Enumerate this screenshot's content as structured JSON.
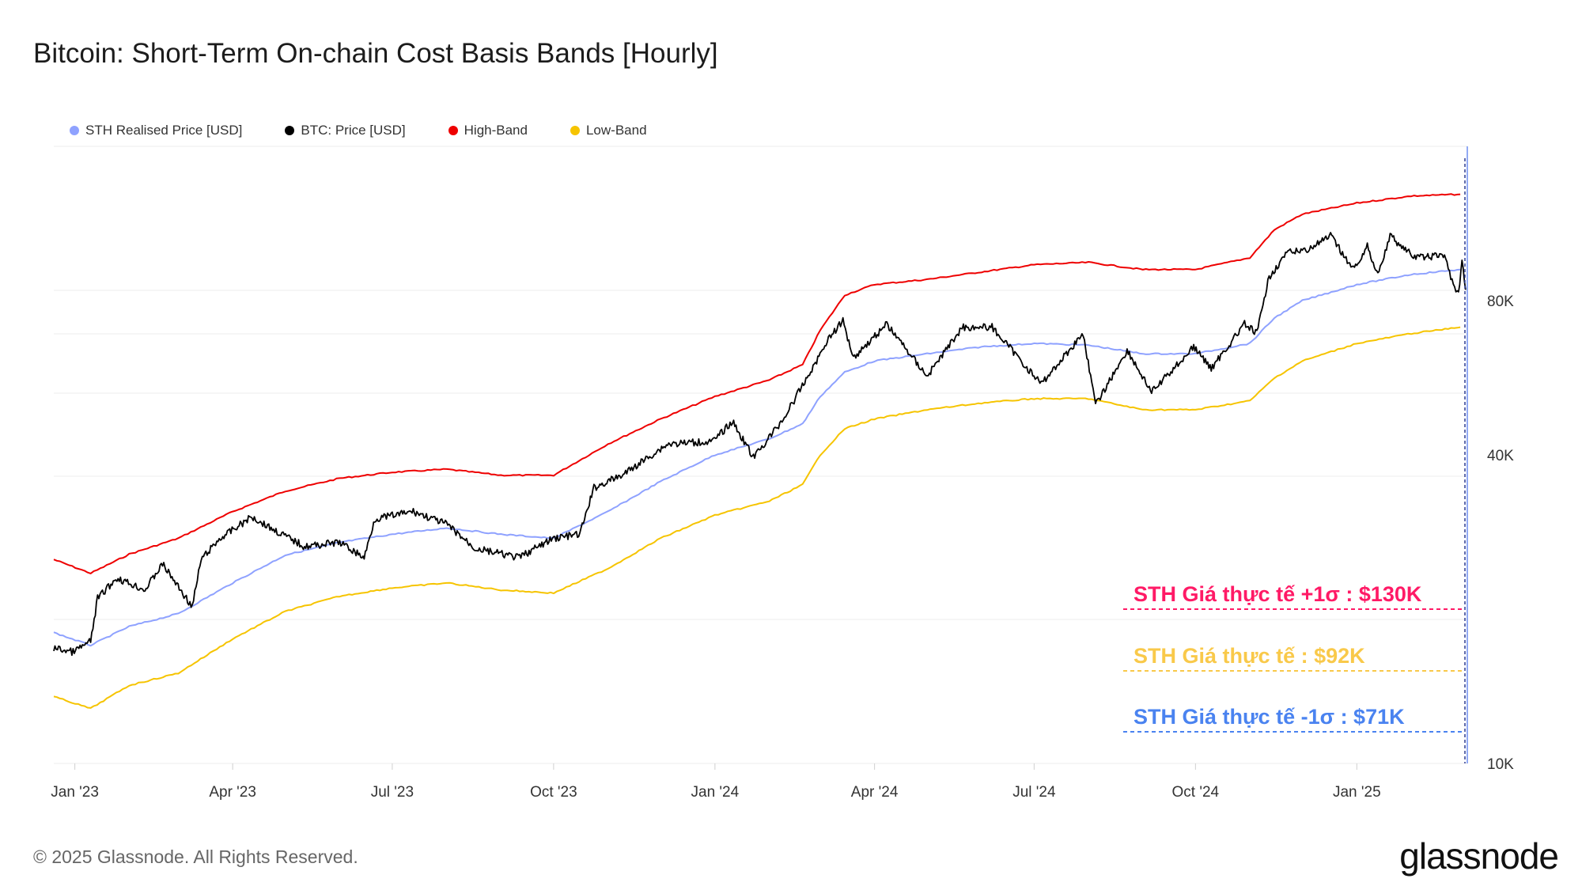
{
  "title": "Bitcoin: Short-Term On-chain Cost Basis Bands [Hourly]",
  "legend": [
    {
      "label": "STH Realised Price [USD]",
      "color": "#8fa2ff"
    },
    {
      "label": "BTC: Price [USD]",
      "color": "#000000"
    },
    {
      "label": "High-Band",
      "color": "#ee0000"
    },
    {
      "label": "Low-Band",
      "color": "#f6c400"
    }
  ],
  "footer": "© 2025 Glassnode. All Rights Reserved.",
  "brand": "glassnode",
  "annotations": {
    "high": {
      "text": "STH Giá thực tế +1σ : $130K",
      "color": "#ff1a66"
    },
    "mid": {
      "text": "STH Giá thực tế  : $92K",
      "color": "#f9c94a"
    },
    "low": {
      "text": "STH Giá thực tế -1σ : $71K",
      "color": "#4a83f0"
    }
  },
  "chart_data": {
    "type": "line",
    "scale": "log",
    "ylim": [
      10000,
      160000
    ],
    "xlim": [
      "2022-12-20",
      "2025-03-05"
    ],
    "yticks": [
      {
        "value": 10000,
        "label": "10K"
      },
      {
        "value": 40000,
        "label": "40K"
      },
      {
        "value": 80000,
        "label": "80K"
      }
    ],
    "xticks": [
      {
        "date": "2023-01-01",
        "label": "Jan '23"
      },
      {
        "date": "2023-04-01",
        "label": "Apr '23"
      },
      {
        "date": "2023-07-01",
        "label": "Jul '23"
      },
      {
        "date": "2023-10-01",
        "label": "Oct '23"
      },
      {
        "date": "2024-01-01",
        "label": "Jan '24"
      },
      {
        "date": "2024-04-01",
        "label": "Apr '24"
      },
      {
        "date": "2024-07-01",
        "label": "Jul '24"
      },
      {
        "date": "2024-10-01",
        "label": "Oct '24"
      },
      {
        "date": "2025-01-01",
        "label": "Jan '25"
      }
    ],
    "grid": true,
    "legend_position": "top-left",
    "series": [
      {
        "name": "High-Band",
        "color": "#ee0000",
        "points": [
          [
            "2022-12-20",
            25000
          ],
          [
            "2023-01-10",
            23500
          ],
          [
            "2023-02-01",
            25600
          ],
          [
            "2023-03-01",
            27500
          ],
          [
            "2023-04-01",
            31000
          ],
          [
            "2023-05-01",
            34000
          ],
          [
            "2023-06-01",
            36000
          ],
          [
            "2023-07-01",
            37000
          ],
          [
            "2023-08-01",
            37500
          ],
          [
            "2023-09-01",
            36500
          ],
          [
            "2023-10-01",
            36500
          ],
          [
            "2023-11-01",
            42000
          ],
          [
            "2023-12-01",
            47000
          ],
          [
            "2024-01-01",
            52000
          ],
          [
            "2024-02-01",
            56000
          ],
          [
            "2024-02-20",
            60000
          ],
          [
            "2024-03-01",
            70000
          ],
          [
            "2024-03-15",
            82000
          ],
          [
            "2024-04-01",
            86000
          ],
          [
            "2024-05-01",
            88000
          ],
          [
            "2024-06-01",
            91000
          ],
          [
            "2024-07-01",
            94000
          ],
          [
            "2024-08-01",
            95000
          ],
          [
            "2024-09-01",
            92000
          ],
          [
            "2024-10-01",
            92000
          ],
          [
            "2024-11-01",
            97000
          ],
          [
            "2024-11-15",
            110000
          ],
          [
            "2024-12-01",
            118000
          ],
          [
            "2025-01-01",
            124000
          ],
          [
            "2025-02-01",
            128000
          ],
          [
            "2025-03-01",
            129000
          ]
        ]
      },
      {
        "name": "STH Realised Price [USD]",
        "color": "#8fa2ff",
        "points": [
          [
            "2022-12-20",
            18000
          ],
          [
            "2023-01-10",
            17000
          ],
          [
            "2023-02-01",
            18500
          ],
          [
            "2023-03-01",
            19600
          ],
          [
            "2023-04-01",
            22500
          ],
          [
            "2023-05-01",
            25500
          ],
          [
            "2023-06-01",
            27000
          ],
          [
            "2023-07-01",
            28000
          ],
          [
            "2023-08-01",
            28800
          ],
          [
            "2023-09-01",
            28000
          ],
          [
            "2023-10-01",
            27500
          ],
          [
            "2023-11-01",
            31000
          ],
          [
            "2023-12-01",
            35500
          ],
          [
            "2024-01-01",
            40000
          ],
          [
            "2024-02-01",
            43000
          ],
          [
            "2024-02-20",
            46000
          ],
          [
            "2024-03-01",
            52000
          ],
          [
            "2024-03-15",
            58000
          ],
          [
            "2024-04-01",
            61000
          ],
          [
            "2024-05-01",
            63000
          ],
          [
            "2024-06-01",
            65000
          ],
          [
            "2024-07-01",
            66000
          ],
          [
            "2024-08-01",
            65500
          ],
          [
            "2024-09-01",
            63000
          ],
          [
            "2024-10-01",
            63000
          ],
          [
            "2024-11-01",
            66000
          ],
          [
            "2024-11-15",
            74000
          ],
          [
            "2024-12-01",
            80000
          ],
          [
            "2025-01-01",
            86000
          ],
          [
            "2025-02-01",
            90000
          ],
          [
            "2025-03-01",
            92000
          ]
        ]
      },
      {
        "name": "Low-Band",
        "color": "#f6c400",
        "points": [
          [
            "2022-12-20",
            13500
          ],
          [
            "2023-01-10",
            12800
          ],
          [
            "2023-02-01",
            14200
          ],
          [
            "2023-03-01",
            15000
          ],
          [
            "2023-04-01",
            17500
          ],
          [
            "2023-05-01",
            19800
          ],
          [
            "2023-06-01",
            21200
          ],
          [
            "2023-07-01",
            22000
          ],
          [
            "2023-08-01",
            22500
          ],
          [
            "2023-09-01",
            21800
          ],
          [
            "2023-10-01",
            21500
          ],
          [
            "2023-11-01",
            24000
          ],
          [
            "2023-12-01",
            27500
          ],
          [
            "2024-01-01",
            30500
          ],
          [
            "2024-02-01",
            32500
          ],
          [
            "2024-02-20",
            35000
          ],
          [
            "2024-03-01",
            40000
          ],
          [
            "2024-03-15",
            45000
          ],
          [
            "2024-04-01",
            47000
          ],
          [
            "2024-05-01",
            49000
          ],
          [
            "2024-06-01",
            50500
          ],
          [
            "2024-07-01",
            51500
          ],
          [
            "2024-08-01",
            51500
          ],
          [
            "2024-09-01",
            49000
          ],
          [
            "2024-10-01",
            49000
          ],
          [
            "2024-11-01",
            51000
          ],
          [
            "2024-11-15",
            56500
          ],
          [
            "2024-12-01",
            61000
          ],
          [
            "2025-01-01",
            66000
          ],
          [
            "2025-02-01",
            69000
          ],
          [
            "2025-03-01",
            71000
          ]
        ]
      },
      {
        "name": "BTC: Price [USD]",
        "color": "#000000",
        "points": [
          [
            "2022-12-20",
            16800
          ],
          [
            "2022-12-31",
            16500
          ],
          [
            "2023-01-10",
            17300
          ],
          [
            "2023-01-14",
            21000
          ],
          [
            "2023-01-25",
            23000
          ],
          [
            "2023-02-10",
            21800
          ],
          [
            "2023-02-20",
            24500
          ],
          [
            "2023-03-09",
            20200
          ],
          [
            "2023-03-14",
            25000
          ],
          [
            "2023-03-25",
            27500
          ],
          [
            "2023-04-12",
            30300
          ],
          [
            "2023-04-25",
            28500
          ],
          [
            "2023-05-12",
            26500
          ],
          [
            "2023-06-01",
            27000
          ],
          [
            "2023-06-15",
            25200
          ],
          [
            "2023-06-21",
            30000
          ],
          [
            "2023-07-13",
            31000
          ],
          [
            "2023-08-01",
            29300
          ],
          [
            "2023-08-17",
            26300
          ],
          [
            "2023-09-11",
            25200
          ],
          [
            "2023-10-01",
            27500
          ],
          [
            "2023-10-16",
            28000
          ],
          [
            "2023-10-24",
            34500
          ],
          [
            "2023-11-09",
            36500
          ],
          [
            "2023-12-05",
            42000
          ],
          [
            "2023-12-31",
            42500
          ],
          [
            "2024-01-11",
            46500
          ],
          [
            "2024-01-23",
            39500
          ],
          [
            "2024-02-09",
            47000
          ],
          [
            "2024-02-28",
            61000
          ],
          [
            "2024-03-05",
            67000
          ],
          [
            "2024-03-14",
            73000
          ],
          [
            "2024-03-20",
            62000
          ],
          [
            "2024-04-08",
            72000
          ],
          [
            "2024-05-01",
            57000
          ],
          [
            "2024-05-21",
            71000
          ],
          [
            "2024-06-07",
            71000
          ],
          [
            "2024-07-05",
            55000
          ],
          [
            "2024-07-29",
            69000
          ],
          [
            "2024-08-05",
            50000
          ],
          [
            "2024-08-23",
            64000
          ],
          [
            "2024-09-06",
            53000
          ],
          [
            "2024-09-30",
            65000
          ],
          [
            "2024-10-10",
            59000
          ],
          [
            "2024-10-29",
            72000
          ],
          [
            "2024-11-05",
            69000
          ],
          [
            "2024-11-12",
            89000
          ],
          [
            "2024-11-22",
            99000
          ],
          [
            "2024-12-05",
            101000
          ],
          [
            "2024-12-17",
            107000
          ],
          [
            "2024-12-30",
            92000
          ],
          [
            "2025-01-07",
            102000
          ],
          [
            "2025-01-13",
            90000
          ],
          [
            "2025-01-20",
            107000
          ],
          [
            "2025-02-03",
            97000
          ],
          [
            "2025-02-20",
            98000
          ],
          [
            "2025-02-25",
            86000
          ],
          [
            "2025-02-28",
            82000
          ],
          [
            "2025-03-02",
            95000
          ],
          [
            "2025-03-04",
            84000
          ]
        ]
      }
    ]
  }
}
